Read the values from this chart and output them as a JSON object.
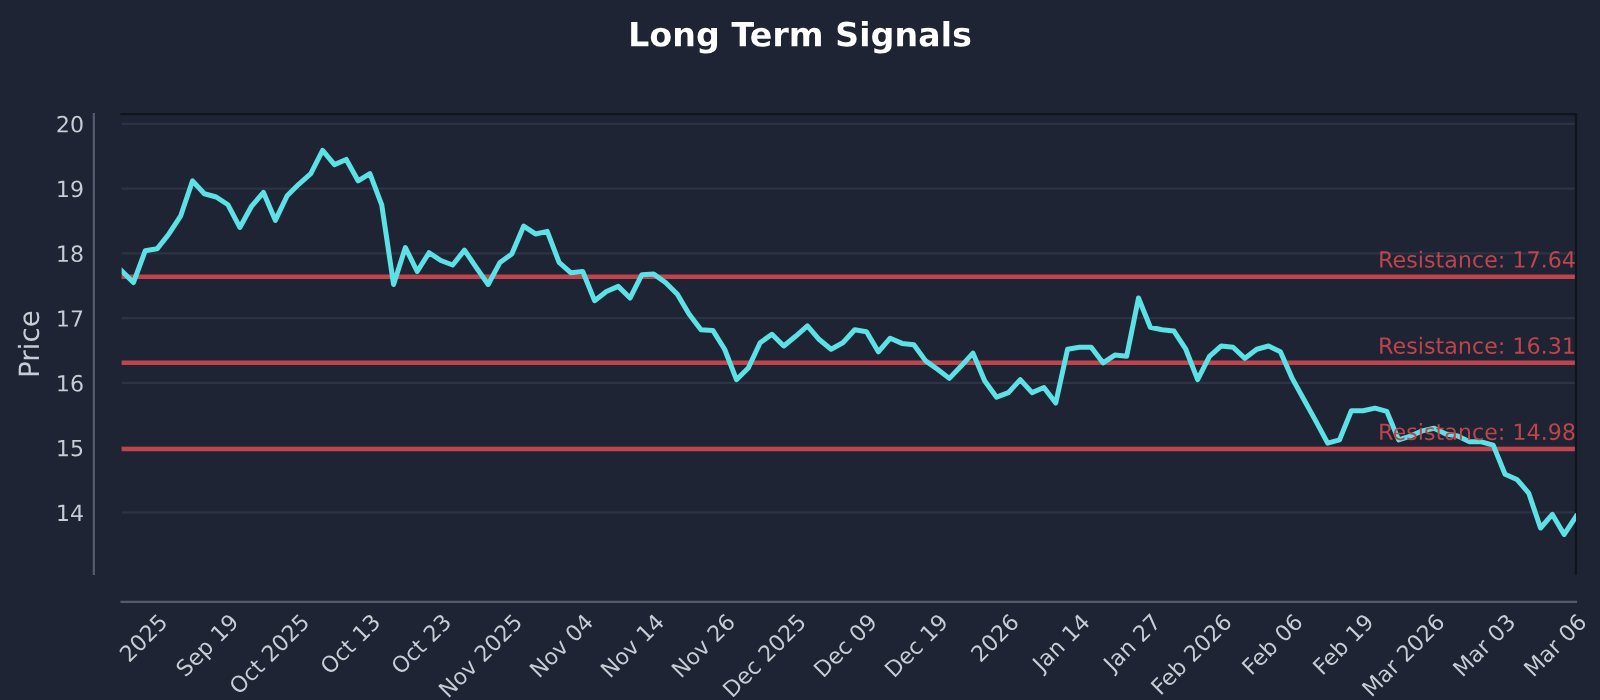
{
  "chart_data": {
    "type": "line",
    "title": "Long Term Signals",
    "ylabel": "Price",
    "categories": [
      null,
      null,
      null,
      "2025",
      null,
      null,
      null,
      null,
      null,
      "Sep 19",
      null,
      null,
      null,
      null,
      null,
      "Oct 2025",
      null,
      null,
      null,
      null,
      null,
      "Oct 13",
      null,
      null,
      null,
      null,
      null,
      "Oct 23",
      null,
      null,
      null,
      null,
      null,
      "Nov 2025",
      null,
      null,
      null,
      null,
      null,
      "Nov 04",
      null,
      null,
      null,
      null,
      null,
      "Nov 14",
      null,
      null,
      null,
      null,
      null,
      "Nov 26",
      null,
      null,
      null,
      null,
      null,
      "Dec 2025",
      null,
      null,
      null,
      null,
      null,
      "Dec 09",
      null,
      null,
      null,
      null,
      null,
      "Dec 19",
      null,
      null,
      null,
      null,
      null,
      "2026",
      null,
      null,
      null,
      null,
      null,
      "Jan 14",
      null,
      null,
      null,
      null,
      null,
      "Jan 27",
      null,
      null,
      null,
      null,
      null,
      "Feb 2026",
      null,
      null,
      null,
      null,
      null,
      "Feb 06",
      null,
      null,
      null,
      null,
      null,
      "Feb 19",
      null,
      null,
      null,
      null,
      null,
      "Mar 2026",
      null,
      null,
      null,
      null,
      null,
      "Mar 03",
      null,
      null,
      null,
      null,
      null,
      "Mar 06"
    ],
    "series": [
      {
        "color": "#5ce1e6",
        "values": [
          17.73,
          17.55,
          18.04,
          18.07,
          18.3,
          18.58,
          19.12,
          18.92,
          18.87,
          18.75,
          18.4,
          18.73,
          18.94,
          18.51,
          18.89,
          19.07,
          19.23,
          19.59,
          19.37,
          19.45,
          19.12,
          19.23,
          18.75,
          17.52,
          18.09,
          17.72,
          18.01,
          17.89,
          17.82,
          18.05,
          17.78,
          17.52,
          17.86,
          17.99,
          18.42,
          18.3,
          18.34,
          17.86,
          17.7,
          17.72,
          17.27,
          17.41,
          17.49,
          17.31,
          17.67,
          17.68,
          17.55,
          17.37,
          17.06,
          16.82,
          16.81,
          16.52,
          16.05,
          16.23,
          16.62,
          16.75,
          16.57,
          16.72,
          16.88,
          16.67,
          16.52,
          16.62,
          16.82,
          16.79,
          16.48,
          16.69,
          16.61,
          16.59,
          16.34,
          16.21,
          16.07,
          16.26,
          16.46,
          16.03,
          15.78,
          15.85,
          16.05,
          15.85,
          15.93,
          15.69,
          16.52,
          16.55,
          16.55,
          16.31,
          16.43,
          16.41,
          17.31,
          16.86,
          16.82,
          16.8,
          16.52,
          16.05,
          16.41,
          16.57,
          16.55,
          16.38,
          16.52,
          16.57,
          16.48,
          16.07,
          15.74,
          15.41,
          15.07,
          15.12,
          15.57,
          15.57,
          15.61,
          15.56,
          15.12,
          15.18,
          15.26,
          15.3,
          15.21,
          15.18,
          15.09,
          15.09,
          15.04,
          14.59,
          14.51,
          14.3,
          13.76,
          13.97,
          13.66,
          13.94
        ]
      }
    ],
    "ylim": [
      13.05,
      20.15
    ],
    "yticks": [
      14,
      15,
      16,
      17,
      18,
      19,
      20
    ],
    "grid": "y",
    "legend": false,
    "marker": "none",
    "line_style": "solid",
    "ref_lines": [
      {
        "axis": "y",
        "value": 17.64,
        "label": "Resistance: 17.64",
        "color": "#c0444c"
      },
      {
        "axis": "y",
        "value": 16.31,
        "label": "Resistance: 16.31",
        "color": "#c0444c"
      },
      {
        "axis": "y",
        "value": 14.98,
        "label": "Resistance: 14.98",
        "color": "#c0444c"
      }
    ]
  }
}
